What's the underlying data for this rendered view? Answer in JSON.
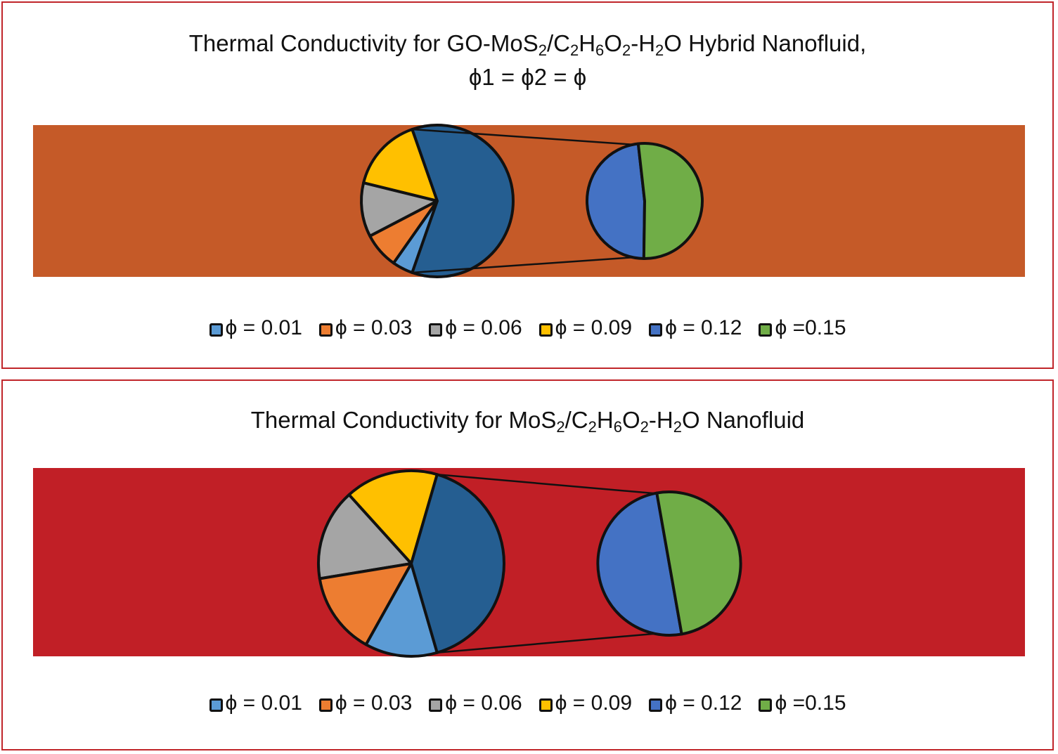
{
  "chart_data": [
    {
      "type": "bar-of-pie",
      "title_parts": [
        "Thermal Conductivity for GO-MoS",
        "2",
        "/C",
        "2",
        "H",
        "6",
        "O",
        "2",
        "-H",
        "2",
        "O Hybrid Nanofluid,"
      ],
      "title_line2": "ϕ1 = ϕ2 = ϕ",
      "background_color": "#c55a28",
      "categories": [
        "ϕ = 0.01",
        "ϕ = 0.03",
        "ϕ = 0.06",
        "ϕ = 0.09",
        "ϕ = 0.12",
        "ϕ = 0.15"
      ],
      "colors": [
        "#5b9bd5",
        "#ed7d31",
        "#a5a5a5",
        "#ffc000",
        "#4472c4",
        "#70ad47"
      ],
      "main_pie": {
        "slices": [
          "ϕ = 0.01",
          "ϕ = 0.03",
          "ϕ = 0.06",
          "ϕ = 0.09",
          "other"
        ],
        "values_pct": [
          4.4,
          7.6,
          11.5,
          15.8,
          60.7
        ],
        "other_color": "#255e91"
      },
      "secondary_pie": {
        "slices": [
          "ϕ = 0.12",
          "ϕ = 0.15"
        ],
        "values_pct": [
          48,
          52
        ]
      },
      "legend": [
        "ϕ = 0.01",
        "ϕ = 0.03",
        "ϕ = 0.06",
        "ϕ = 0.09",
        "ϕ = 0.12",
        "ϕ =0.15"
      ]
    },
    {
      "type": "bar-of-pie",
      "title_parts": [
        "Thermal Conductivity for MoS",
        "2",
        "/C",
        "2",
        "H",
        "6",
        "O",
        "2",
        "-H",
        "2",
        "O Nanofluid"
      ],
      "background_color": "#c11f26",
      "categories": [
        "ϕ = 0.01",
        "ϕ = 0.03",
        "ϕ = 0.06",
        "ϕ = 0.09",
        "ϕ = 0.12",
        "ϕ = 0.15"
      ],
      "colors": [
        "#5b9bd5",
        "#ed7d31",
        "#a5a5a5",
        "#ffc000",
        "#4472c4",
        "#70ad47"
      ],
      "main_pie": {
        "slices": [
          "ϕ = 0.01",
          "ϕ = 0.03",
          "ϕ = 0.06",
          "ϕ = 0.09",
          "other"
        ],
        "values_pct": [
          12.6,
          14.3,
          15.9,
          16.2,
          41.0
        ],
        "other_color": "#255e91"
      },
      "secondary_pie": {
        "slices": [
          "ϕ = 0.12",
          "ϕ = 0.15"
        ],
        "values_pct": [
          50,
          50
        ]
      },
      "legend": [
        "ϕ = 0.01",
        "ϕ = 0.03",
        "ϕ = 0.06",
        "ϕ = 0.09",
        "ϕ = 0.12",
        "ϕ =0.15"
      ]
    }
  ]
}
